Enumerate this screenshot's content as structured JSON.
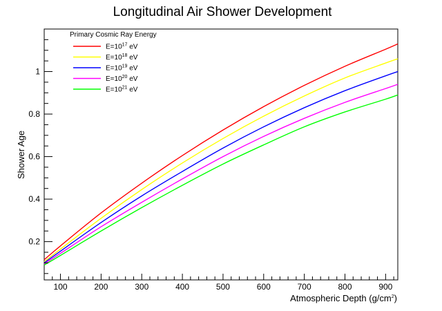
{
  "chart_data": {
    "type": "line",
    "title": "Longitudinal Air Shower Development",
    "xlabel": {
      "main": "Atmospheric Depth (g/cm",
      "sup": "2",
      "tail": ")"
    },
    "ylabel": "Shower Age",
    "xlim": [
      60,
      930
    ],
    "ylim": [
      0.02,
      1.2
    ],
    "xticks": [
      100,
      200,
      300,
      400,
      500,
      600,
      700,
      800,
      900
    ],
    "yticks": [
      0.2,
      0.4,
      0.6,
      0.8,
      1
    ],
    "xtick_labels": [
      "100",
      "200",
      "300",
      "400",
      "500",
      "600",
      "700",
      "800",
      "900"
    ],
    "ytick_labels": [
      "0.2",
      "0.4",
      "0.6",
      "0.8",
      "1"
    ],
    "grid": false,
    "legend": {
      "header": "Primary Cosmic Ray Energy",
      "placement": "top-left"
    },
    "series": [
      {
        "name": "E=10^17 eV",
        "base": "E=10",
        "exp": "17",
        "unit": " eV",
        "color": "#ff0000",
        "x": [
          60,
          100,
          200,
          300,
          400,
          500,
          600,
          700,
          800,
          900,
          930
        ],
        "y": [
          0.115,
          0.18,
          0.335,
          0.475,
          0.605,
          0.725,
          0.835,
          0.935,
          1.025,
          1.105,
          1.13
        ]
      },
      {
        "name": "E=10^18 eV",
        "base": "E=10",
        "exp": "18",
        "unit": " eV",
        "color": "#ffff00",
        "x": [
          60,
          100,
          200,
          300,
          400,
          500,
          600,
          700,
          800,
          900,
          930
        ],
        "y": [
          0.105,
          0.165,
          0.31,
          0.445,
          0.57,
          0.685,
          0.79,
          0.885,
          0.97,
          1.04,
          1.06
        ]
      },
      {
        "name": "E=10^19 eV",
        "base": "E=10",
        "exp": "19",
        "unit": " eV",
        "color": "#0000ff",
        "x": [
          60,
          100,
          200,
          300,
          400,
          500,
          600,
          700,
          800,
          900,
          930
        ],
        "y": [
          0.1,
          0.155,
          0.29,
          0.415,
          0.53,
          0.64,
          0.74,
          0.83,
          0.91,
          0.98,
          1.0
        ]
      },
      {
        "name": "E=10^20 eV",
        "base": "E=10",
        "exp": "20",
        "unit": " eV",
        "color": "#ff00ff",
        "x": [
          60,
          100,
          200,
          300,
          400,
          500,
          600,
          700,
          800,
          900,
          930
        ],
        "y": [
          0.095,
          0.145,
          0.27,
          0.385,
          0.495,
          0.6,
          0.695,
          0.78,
          0.855,
          0.92,
          0.94
        ]
      },
      {
        "name": "E=10^21 eV",
        "base": "E=10",
        "exp": "21",
        "unit": " eV",
        "color": "#00ff00",
        "x": [
          60,
          100,
          200,
          300,
          400,
          500,
          600,
          700,
          800,
          900,
          930
        ],
        "y": [
          0.09,
          0.135,
          0.25,
          0.36,
          0.465,
          0.565,
          0.655,
          0.74,
          0.81,
          0.87,
          0.89
        ]
      }
    ]
  }
}
